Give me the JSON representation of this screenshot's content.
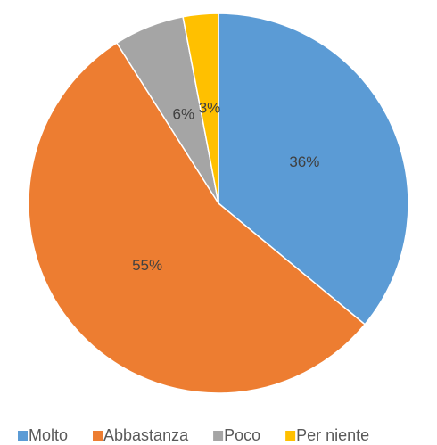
{
  "chart_data": {
    "type": "pie",
    "categories": [
      "Molto",
      "Abbastanza",
      "Poco",
      "Per niente"
    ],
    "values": [
      36,
      55,
      6,
      3
    ],
    "value_labels": [
      "36%",
      "55%",
      "6%",
      "3%"
    ],
    "colors": [
      "#5b9bd5",
      "#ed7d31",
      "#a5a5a5",
      "#ffc000"
    ],
    "legend": "bottom"
  }
}
